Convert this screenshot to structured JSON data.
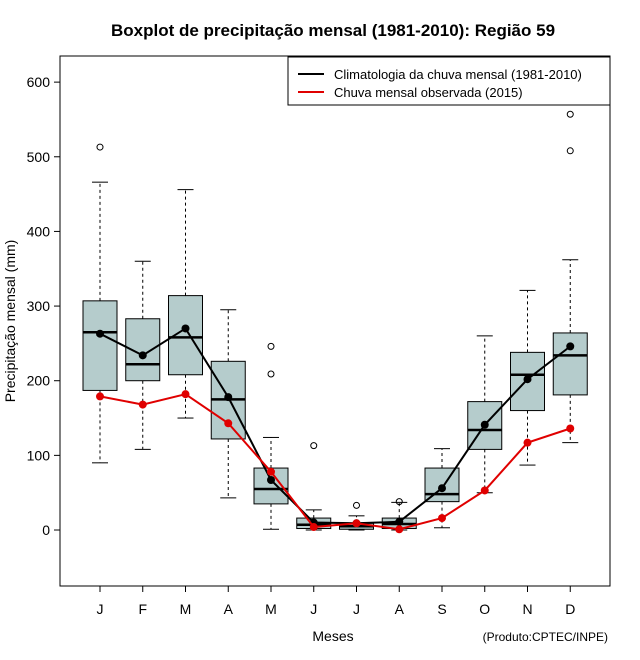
{
  "chart_data": {
    "type": "boxplot",
    "title": "Boxplot de precipitação mensal (1981-2010): Região 59",
    "xlabel": "Meses",
    "ylabel": "Precipitação mensal (mm)",
    "credit": "(Produto:CPTEC/INPE)",
    "ylim": [
      -75,
      635
    ],
    "yticks": [
      0,
      100,
      200,
      300,
      400,
      500,
      600
    ],
    "categories": [
      "J",
      "F",
      "M",
      "A",
      "M",
      "J",
      "J",
      "A",
      "S",
      "O",
      "N",
      "D"
    ],
    "box_color": "#b5cccc",
    "boxes": [
      {
        "whisker_low": 90,
        "q1": 187,
        "median": 265,
        "q3": 307,
        "whisker_high": 466,
        "outliers": [
          513
        ]
      },
      {
        "whisker_low": 108,
        "q1": 200,
        "median": 222,
        "q3": 283,
        "whisker_high": 360,
        "outliers": []
      },
      {
        "whisker_low": 150,
        "q1": 208,
        "median": 258,
        "q3": 314,
        "whisker_high": 456,
        "outliers": []
      },
      {
        "whisker_low": 43,
        "q1": 122,
        "median": 175,
        "q3": 226,
        "whisker_high": 295,
        "outliers": []
      },
      {
        "whisker_low": 1,
        "q1": 35,
        "median": 55,
        "q3": 83,
        "whisker_high": 124,
        "outliers": [
          209,
          246
        ]
      },
      {
        "whisker_low": 0,
        "q1": 2,
        "median": 7,
        "q3": 16,
        "whisker_high": 27,
        "outliers": [
          113
        ]
      },
      {
        "whisker_low": 0,
        "q1": 1,
        "median": 5,
        "q3": 9,
        "whisker_high": 19,
        "outliers": [
          33
        ]
      },
      {
        "whisker_low": 0,
        "q1": 2,
        "median": 8,
        "q3": 16,
        "whisker_high": 37,
        "outliers": [
          38
        ]
      },
      {
        "whisker_low": 3,
        "q1": 38,
        "median": 48,
        "q3": 83,
        "whisker_high": 109,
        "outliers": []
      },
      {
        "whisker_low": 50,
        "q1": 108,
        "median": 134,
        "q3": 172,
        "whisker_high": 260,
        "outliers": []
      },
      {
        "whisker_low": 87,
        "q1": 160,
        "median": 208,
        "q3": 238,
        "whisker_high": 321,
        "outliers": []
      },
      {
        "whisker_low": 117,
        "q1": 181,
        "median": 234,
        "q3": 264,
        "whisker_high": 362,
        "outliers": [
          508,
          557
        ]
      }
    ],
    "series": [
      {
        "name": "Climatologia da chuva mensal (1981-2010)",
        "color": "#000000",
        "values": [
          263,
          234,
          270,
          178,
          67,
          10,
          9,
          11,
          56,
          141,
          202,
          246
        ]
      },
      {
        "name": "Chuva mensal observada (2015)",
        "color": "#e00000",
        "values": [
          179,
          168,
          182,
          143,
          78,
          4,
          9,
          1,
          16,
          53,
          117,
          136
        ]
      }
    ],
    "legend_position": "top-right"
  }
}
